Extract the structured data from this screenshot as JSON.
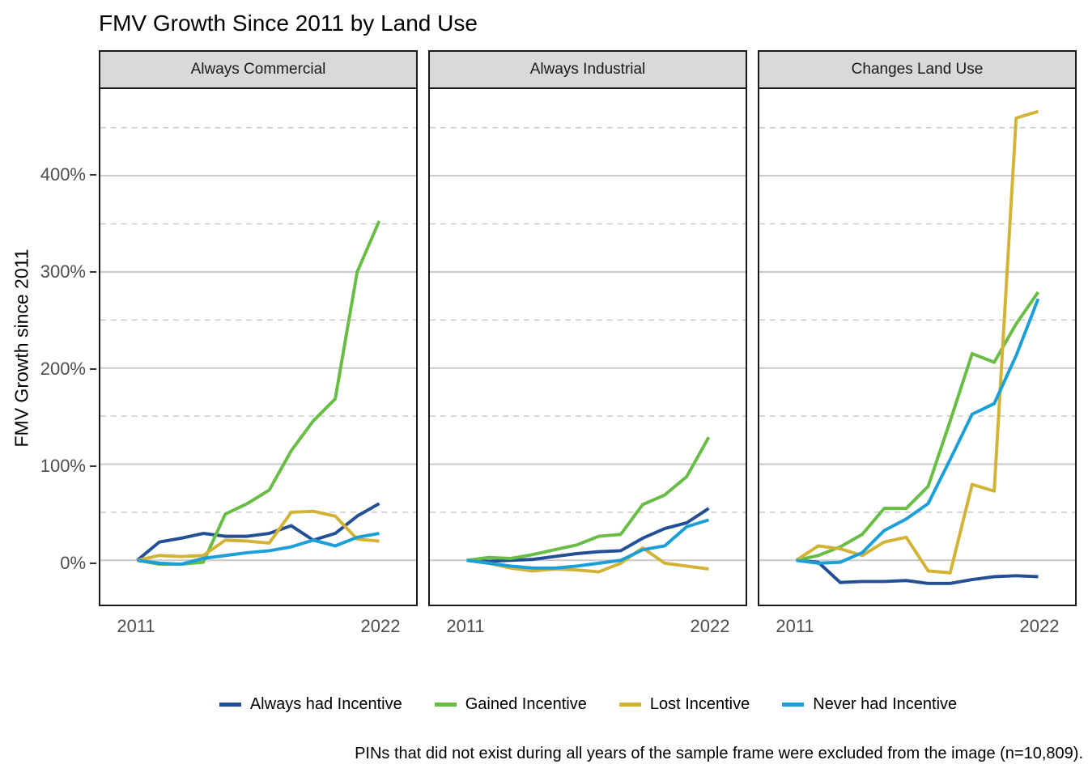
{
  "title": "FMV Growth Since 2011 by Land Use",
  "y_axis_title": "FMV Growth since 2011",
  "caption": "PINs that did not exist during all years of the sample frame were excluded from the image (n=10,809).",
  "axis": {
    "x_tick_labels": [
      "2011",
      "2022"
    ],
    "y_tick_labels": [
      "0%",
      "100%",
      "200%",
      "300%",
      "400%"
    ],
    "y_tick_values": [
      0,
      100,
      200,
      300,
      400
    ]
  },
  "legend": {
    "items": [
      {
        "label": "Always had Incentive",
        "color": "#234f94"
      },
      {
        "label": "Gained Incentive",
        "color": "#68bd44"
      },
      {
        "label": "Lost Incentive",
        "color": "#d2b335"
      },
      {
        "label": "Never had Incentive",
        "color": "#1b9fd8"
      }
    ]
  },
  "chart_data": {
    "type": "line",
    "x": [
      2011,
      2012,
      2013,
      2014,
      2015,
      2016,
      2017,
      2018,
      2019,
      2020,
      2021,
      2022
    ],
    "xlabel": "",
    "ylabel": "FMV Growth since 2011",
    "units": "percent growth since 2011",
    "ylim": [
      -44,
      488
    ],
    "grid": {
      "major": [
        0,
        100,
        200,
        300,
        400
      ],
      "minor_dashed": [
        50,
        150,
        250,
        350,
        450
      ]
    },
    "legend_position": "bottom",
    "facets": [
      {
        "title": "Always Commercial",
        "series": [
          {
            "name": "Always had Incentive",
            "color": "#234f94",
            "values": [
              0,
              19,
              23,
              28,
              25,
              25,
              28,
              36,
              21,
              28,
              46,
              59
            ]
          },
          {
            "name": "Gained Incentive",
            "color": "#68bd44",
            "values": [
              0,
              -4,
              -4,
              -2,
              48,
              59,
              73,
              114,
              145,
              168,
              300,
              353
            ]
          },
          {
            "name": "Lost Incentive",
            "color": "#d2b335",
            "values": [
              0,
              5,
              4,
              5,
              21,
              20,
              18,
              50,
              51,
              46,
              22,
              20
            ]
          },
          {
            "name": "Never had Incentive",
            "color": "#1b9fd8",
            "values": [
              0,
              -3,
              -4,
              2,
              5,
              8,
              10,
              14,
              21,
              15,
              24,
              28
            ]
          }
        ]
      },
      {
        "title": "Always Industrial",
        "series": [
          {
            "name": "Always had Incentive",
            "color": "#234f94",
            "values": [
              0,
              -1,
              0,
              1,
              4,
              7,
              9,
              10,
              23,
              33,
              39,
              54
            ]
          },
          {
            "name": "Gained Incentive",
            "color": "#68bd44",
            "values": [
              0,
              3,
              2,
              6,
              11,
              16,
              25,
              27,
              58,
              68,
              87,
              128
            ]
          },
          {
            "name": "Lost Incentive",
            "color": "#d2b335",
            "values": [
              0,
              -3,
              -8,
              -11,
              -9,
              -10,
              -12,
              -3,
              13,
              -3,
              -6,
              -9
            ]
          },
          {
            "name": "Never had Incentive",
            "color": "#1b9fd8",
            "values": [
              0,
              -3,
              -6,
              -8,
              -8,
              -6,
              -3,
              0,
              11,
              15,
              35,
              42
            ]
          }
        ]
      },
      {
        "title": "Changes Land Use",
        "series": [
          {
            "name": "Always had Incentive",
            "color": "#234f94",
            "values": [
              0,
              -2,
              -23,
              -22,
              -22,
              -21,
              -24,
              -24,
              -20,
              -17,
              -16,
              -17
            ]
          },
          {
            "name": "Gained Incentive",
            "color": "#68bd44",
            "values": [
              0,
              5,
              14,
              27,
              54,
              54,
              77,
              145,
              215,
              206,
              246,
              279
            ]
          },
          {
            "name": "Lost Incentive",
            "color": "#d2b335",
            "values": [
              0,
              15,
              12,
              5,
              19,
              24,
              -11,
              -13,
              79,
              72,
              460,
              467
            ]
          },
          {
            "name": "Never had Incentive",
            "color": "#1b9fd8",
            "values": [
              0,
              -3,
              -2,
              8,
              31,
              43,
              59,
              105,
              152,
              163,
              213,
              272
            ]
          }
        ]
      }
    ]
  }
}
